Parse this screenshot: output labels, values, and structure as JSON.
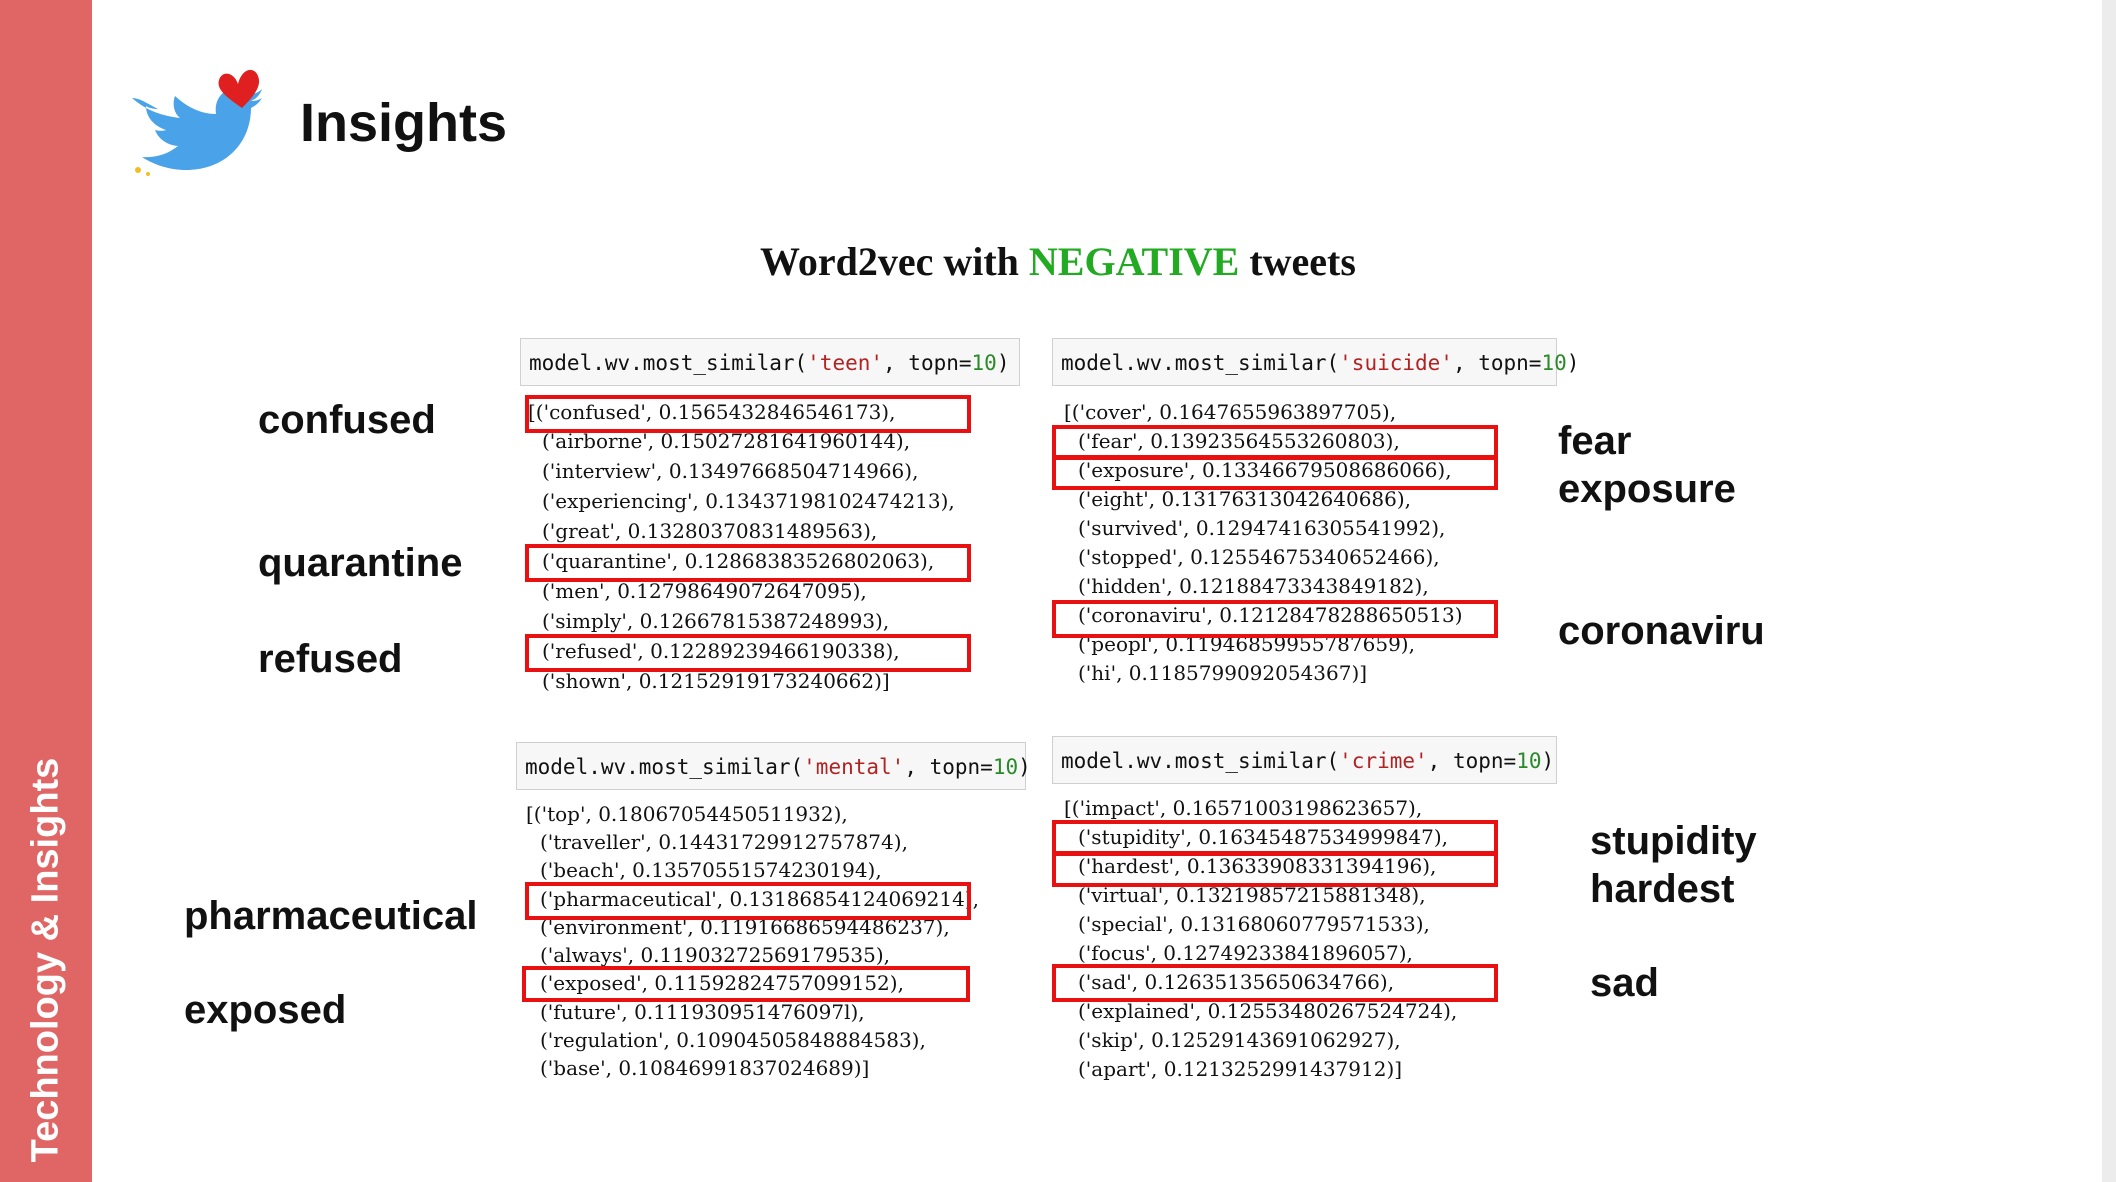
{
  "sidebar": {
    "label": "Technology & Insights"
  },
  "header": {
    "title": "Insights",
    "logo": "twitter-bird-heart-icon"
  },
  "subtitle": {
    "prefix": "Word2vec with ",
    "accent": "NEGATIVE",
    "suffix": " tweets"
  },
  "colors": {
    "sidebar": "#e06666",
    "accent": "#22aa22",
    "highlight": "#e81010",
    "query_string": "#b22222"
  },
  "panels": {
    "teen": {
      "query": {
        "prefix": "model.wv.most_similar(",
        "word": "'teen'",
        "sep": ", topn=",
        "n": "10",
        "suffix": ")"
      },
      "lines": [
        "[('confused', 0.1565432846546173),",
        "('airborne', 0.15027281641960144),",
        "('interview', 0.13497668504714966),",
        "('experiencing', 0.13437198102474213),",
        "('great', 0.13280370831489563),",
        "('quarantine', 0.12868383526802063),",
        "('men', 0.12798649072647095),",
        "('simply', 0.12667815387248993),",
        "('refused', 0.12289239466190338),",
        "('shown', 0.12152919173240662)]"
      ],
      "highlights": [
        "confused",
        "quarantine",
        "refused"
      ]
    },
    "suicide": {
      "query": {
        "prefix": "model.wv.most_similar(",
        "word": "'suicide'",
        "sep": ", topn=",
        "n": "10",
        "suffix": ")"
      },
      "lines": [
        "[('cover', 0.1647655963897705),",
        "('fear', 0.13923564553260803),",
        "('exposure', 0.13346679508686066),",
        "('eight', 0.13176313042640686),",
        "('survived', 0.12947416305541992),",
        "('stopped', 0.12554675340652466),",
        "('hidden', 0.12188473343849182),",
        "('coronaviru', 0.12128478288650513)",
        "('peopl', 0.11946859955787659),",
        "('hi', 0.1185799092054367)]"
      ],
      "highlights": [
        "fear",
        "exposure",
        "coronaviru"
      ]
    },
    "mental": {
      "query": {
        "prefix": "model.wv.most_similar(",
        "word": "'mental'",
        "sep": ", topn=",
        "n": "10",
        "suffix": ")"
      },
      "lines": [
        "[('top', 0.18067054450511932),",
        "('traveller', 0.14431729912757874),",
        "('beach', 0.13570551574230194),",
        "('pharmaceutical', 0.13186854124069214),",
        "('environment', 0.11916686594486237),",
        "('always', 0.11903272569179535),",
        "('exposed', 0.11592824757099152),",
        "('future', 0.111930951476097l),",
        "('regulation', 0.10904505848884583),",
        "('base', 0.10846991837024689)]"
      ],
      "highlights": [
        "pharmaceutical",
        "exposed"
      ]
    },
    "crime": {
      "query": {
        "prefix": "model.wv.most_similar(",
        "word": "'crime'",
        "sep": ", topn=",
        "n": "10",
        "suffix": ")"
      },
      "lines": [
        "[('impact', 0.16571003198623657),",
        "('stupidity', 0.16345487534999847),",
        "('hardest', 0.13633908331394196),",
        "('virtual', 0.13219857215881348),",
        "('special', 0.13168060779571533),",
        "('focus', 0.12749233841896057),",
        "('sad', 0.12635135650634766),",
        "('explained', 0.12553480267524724),",
        "('skip', 0.12529143691062927),",
        "('apart', 0.1213252991437912)]"
      ],
      "highlights": [
        "stupidity",
        "hardest",
        "sad"
      ]
    }
  },
  "annotations": {
    "confused": "confused",
    "quarantine": "quarantine",
    "refused": "refused",
    "fear": "fear",
    "exposure": "exposure",
    "coronaviru": "coronaviru",
    "pharmaceutical": "pharmaceutical",
    "exposed": "exposed",
    "stupidity": "stupidity",
    "hardest": "hardest",
    "sad": "sad"
  }
}
